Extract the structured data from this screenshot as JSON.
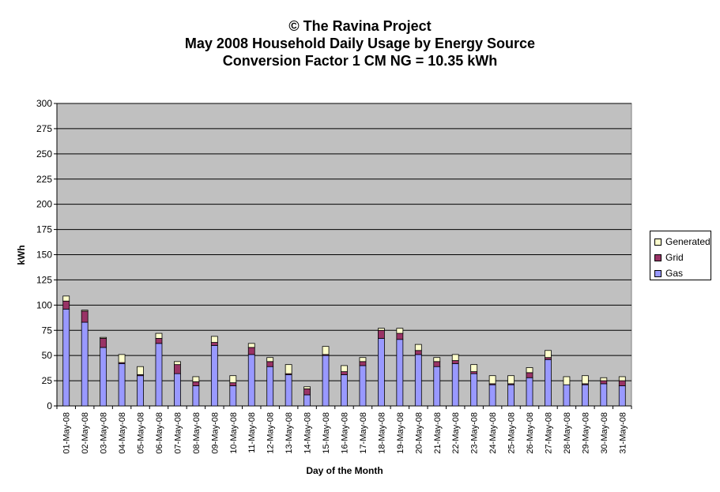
{
  "chart_data": {
    "type": "bar",
    "stacked": true,
    "title": [
      "© The Ravina Project",
      "May 2008 Household Daily Usage by Energy Source",
      "Conversion Factor 1 CM NG = 10.35 kWh"
    ],
    "xlabel": "Day of the Month",
    "ylabel": "kWh",
    "ylim": [
      0,
      300
    ],
    "yticks": [
      0,
      25,
      50,
      75,
      100,
      125,
      150,
      175,
      200,
      225,
      250,
      275,
      300
    ],
    "grid": true,
    "legend_position": "right",
    "plot_background": "#c0c0c0",
    "categories": [
      "01-May-08",
      "02-May-08",
      "03-May-08",
      "04-May-08",
      "05-May-08",
      "06-May-08",
      "07-May-08",
      "08-May-08",
      "09-May-08",
      "10-May-08",
      "11-May-08",
      "12-May-08",
      "13-May-08",
      "14-May-08",
      "15-May-08",
      "16-May-08",
      "17-May-08",
      "18-May-08",
      "19-May-08",
      "20-May-08",
      "21-May-08",
      "22-May-08",
      "23-May-08",
      "24-May-08",
      "25-May-08",
      "26-May-08",
      "27-May-08",
      "28-May-08",
      "29-May-08",
      "30-May-08",
      "31-May-08"
    ],
    "series": [
      {
        "name": "Gas",
        "color": "#9999ff",
        "values": [
          96,
          83,
          58,
          42,
          30,
          62,
          32,
          20,
          60,
          20,
          51,
          39,
          31,
          11,
          50,
          31,
          40,
          67,
          66,
          51,
          39,
          42,
          32,
          21,
          21,
          28,
          46,
          21,
          21,
          22,
          20
        ]
      },
      {
        "name": "Grid",
        "color": "#993366",
        "values": [
          8,
          11,
          9,
          1,
          1,
          5,
          9,
          4,
          3,
          3,
          7,
          5,
          1,
          6,
          1,
          3,
          4,
          8,
          6,
          4,
          5,
          3,
          2,
          1,
          1,
          5,
          2,
          0,
          1,
          3,
          5
        ]
      },
      {
        "name": "Generated",
        "color": "#ffffcc",
        "values": [
          5,
          1,
          1,
          8,
          8,
          5,
          3,
          5,
          6,
          7,
          4,
          4,
          9,
          2,
          8,
          6,
          4,
          2,
          5,
          6,
          4,
          6,
          7,
          8,
          8,
          5,
          7,
          8,
          8,
          3,
          4
        ]
      }
    ]
  }
}
